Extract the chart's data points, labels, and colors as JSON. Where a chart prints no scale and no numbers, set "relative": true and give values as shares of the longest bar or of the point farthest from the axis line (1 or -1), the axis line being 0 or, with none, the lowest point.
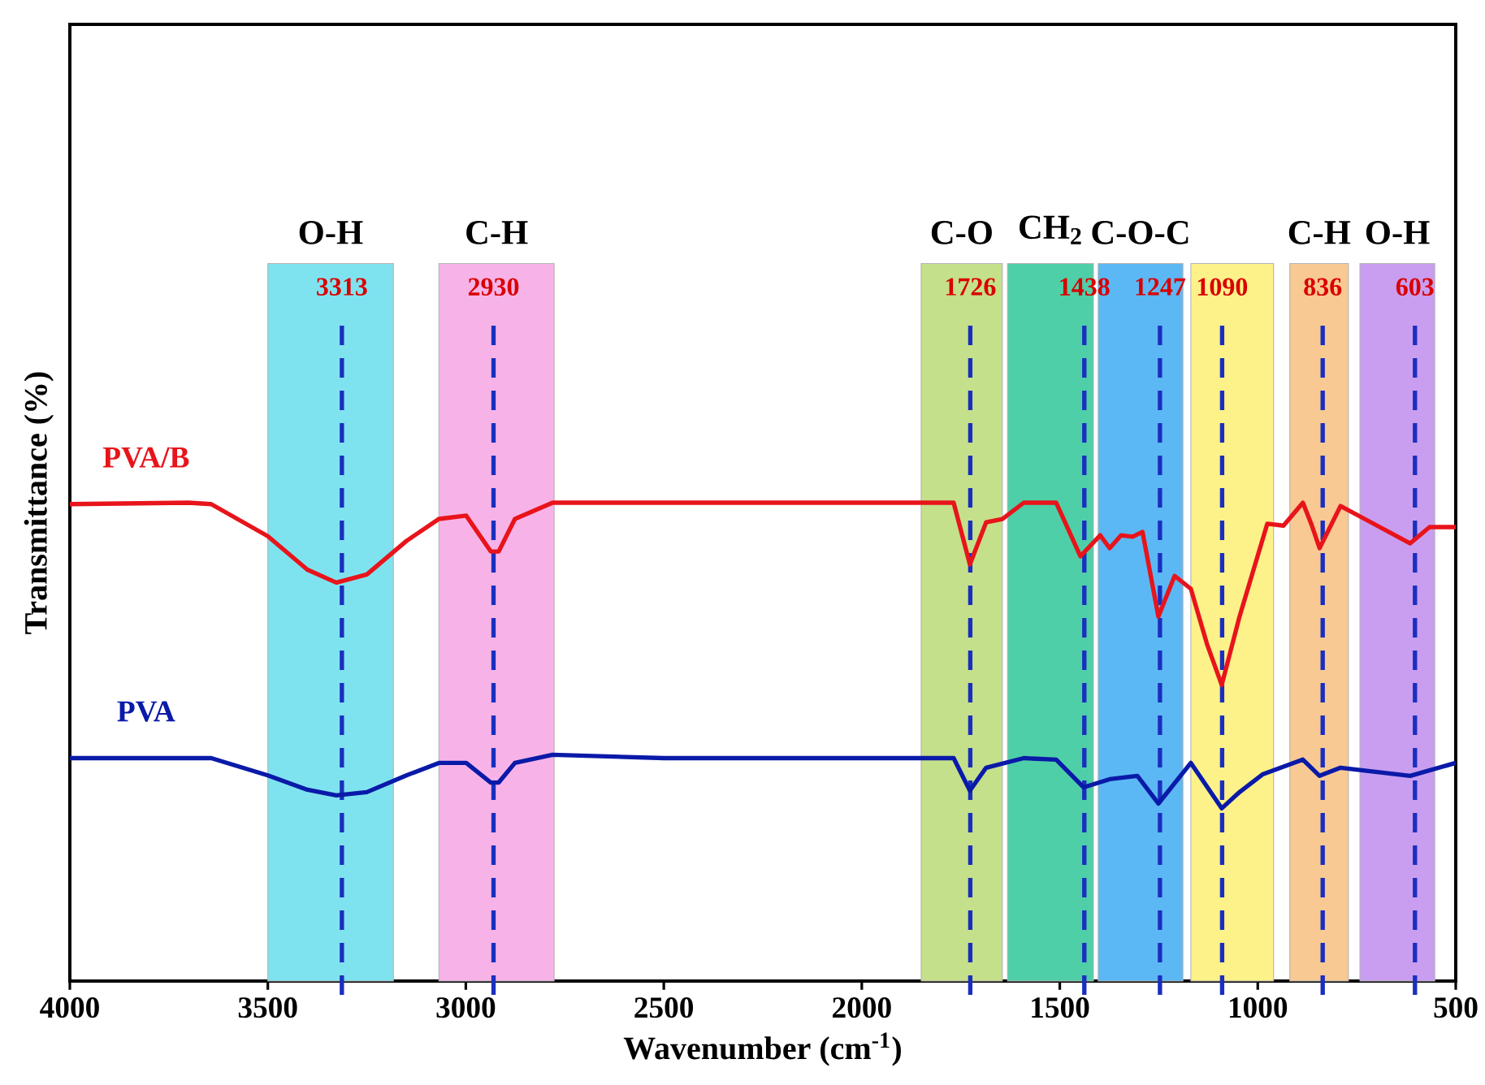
{
  "chart_data": {
    "type": "line",
    "relative": true,
    "xlabel": "Wavenumber (cm$^{-1}$)",
    "ylabel": "Transmittance (%)",
    "xlim": [
      4000,
      500
    ],
    "xticks": [
      4000,
      3500,
      3000,
      2500,
      2000,
      1500,
      1000,
      500
    ],
    "series": [
      {
        "name": "PVA/B",
        "color": "#e8141b",
        "x": [
          4000,
          3700,
          3643,
          3500,
          3400,
          3327,
          3250,
          3150,
          3068,
          2999,
          2937,
          2917,
          2876,
          2781,
          2500,
          2000,
          1768,
          1727,
          1686,
          1645,
          1591,
          1509,
          1448,
          1398,
          1374,
          1345,
          1316,
          1291,
          1251,
          1210,
          1169,
          1128,
          1091,
          1046,
          976,
          935,
          886,
          865,
          844,
          791,
          730,
          615,
          566,
          500
        ],
        "values": [
          0.997,
          1.0,
          0.997,
          0.93,
          0.86,
          0.833,
          0.85,
          0.92,
          0.966,
          0.973,
          0.898,
          0.898,
          0.966,
          1.0,
          1.0,
          1.0,
          1.0,
          0.871,
          0.959,
          0.966,
          1.0,
          1.0,
          0.888,
          0.932,
          0.905,
          0.932,
          0.929,
          0.939,
          0.762,
          0.847,
          0.82,
          0.704,
          0.619,
          0.762,
          0.956,
          0.952,
          1.0,
          0.956,
          0.905,
          0.993,
          0.966,
          0.915,
          0.949,
          0.949
        ]
      },
      {
        "name": "PVA",
        "color": "#0a1aa8",
        "x": [
          4000,
          3700,
          3643,
          3500,
          3400,
          3327,
          3250,
          3150,
          3068,
          2999,
          2937,
          2917,
          2876,
          2781,
          2500,
          2000,
          1768,
          1727,
          1686,
          1591,
          1509,
          1440,
          1374,
          1304,
          1251,
          1169,
          1091,
          1046,
          988,
          886,
          844,
          791,
          615,
          500
        ],
        "values": [
          0.466,
          0.466,
          0.466,
          0.43,
          0.4,
          0.388,
          0.395,
          0.43,
          0.456,
          0.456,
          0.415,
          0.415,
          0.456,
          0.473,
          0.466,
          0.466,
          0.466,
          0.398,
          0.446,
          0.466,
          0.463,
          0.405,
          0.422,
          0.429,
          0.371,
          0.456,
          0.361,
          0.395,
          0.432,
          0.463,
          0.429,
          0.446,
          0.429,
          0.456
        ]
      }
    ],
    "bands": [
      {
        "axis": "x",
        "from": 3500,
        "to": 3183,
        "label": "O-H",
        "color": "#7fe3ef"
      },
      {
        "axis": "x",
        "from": 3068,
        "to": 2777,
        "label": "C-H",
        "color": "#f7b3e8"
      },
      {
        "axis": "x",
        "from": 1850,
        "to": 1645,
        "label": "C-O",
        "color": "#c5e08a"
      },
      {
        "axis": "x",
        "from": 1632,
        "to": 1415,
        "label": "CH$_{2}$",
        "color": "#4fcfa8"
      },
      {
        "axis": "x",
        "from": 1403,
        "to": 1189,
        "label": "C-O-C",
        "color": "#5bb8f5"
      },
      {
        "axis": "x",
        "from": 1169,
        "to": 960,
        "label": null,
        "color": "#fdf18a"
      },
      {
        "axis": "x",
        "from": 919,
        "to": 771,
        "label": "C-H",
        "color": "#f8c992"
      },
      {
        "axis": "x",
        "from": 742,
        "to": 553,
        "label": "O-H",
        "color": "#c99ef0"
      }
    ],
    "ref_lines": [
      {
        "axis": "x",
        "value": 3313,
        "label": "3313",
        "color": "#1a2fbf",
        "line_style": "dashed"
      },
      {
        "axis": "x",
        "value": 2930,
        "label": "2930",
        "color": "#1a2fbf",
        "line_style": "dashed"
      },
      {
        "axis": "x",
        "value": 1726,
        "label": "1726",
        "color": "#1a2fbf",
        "line_style": "dashed"
      },
      {
        "axis": "x",
        "value": 1438,
        "label": "1438",
        "color": "#1a2fbf",
        "line_style": "dashed"
      },
      {
        "axis": "x",
        "value": 1247,
        "label": "1247",
        "color": "#1a2fbf",
        "line_style": "dashed"
      },
      {
        "axis": "x",
        "value": 1090,
        "label": "1090",
        "color": "#1a2fbf",
        "line_style": "dashed"
      },
      {
        "axis": "x",
        "value": 836,
        "label": "836",
        "color": "#1a2fbf",
        "line_style": "dashed"
      },
      {
        "axis": "x",
        "value": 603,
        "label": "603",
        "color": "#1a2fbf",
        "line_style": "dashed"
      }
    ]
  }
}
